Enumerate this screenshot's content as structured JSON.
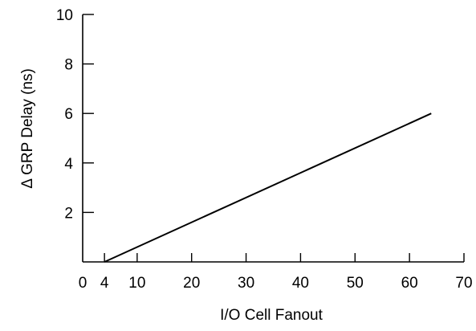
{
  "chart_data": {
    "type": "line",
    "title": "",
    "xlabel": "I/O Cell Fanout",
    "ylabel": "Δ GRP Delay (ns)",
    "xlim": [
      0,
      70
    ],
    "ylim": [
      0,
      10
    ],
    "x_ticks": [
      0,
      4,
      10,
      20,
      30,
      40,
      50,
      60,
      70
    ],
    "y_ticks": [
      2,
      4,
      6,
      8,
      10
    ],
    "grid": false,
    "legend": "none",
    "series": [
      {
        "x": [
          4,
          64
        ],
        "y": [
          0,
          6
        ]
      }
    ]
  }
}
